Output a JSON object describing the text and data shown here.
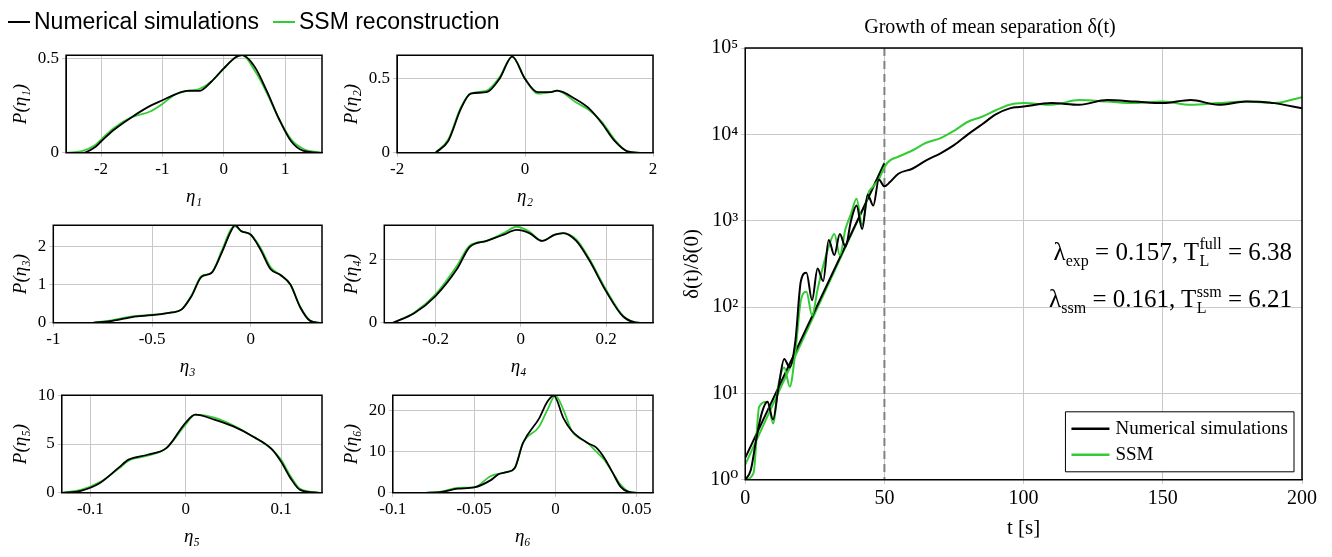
{
  "chart_data": [
    {
      "type": "line",
      "ylabel": "P(η₁)",
      "xlabel": "η₁",
      "xlim": [
        -2.57,
        1.6
      ],
      "xticks": [
        -2,
        -1,
        0,
        1
      ],
      "ylim": [
        0,
        0.52
      ],
      "yticks": [
        0,
        0.5
      ],
      "grid": true,
      "legend": "top",
      "series": [
        {
          "name": "Numerical simulations",
          "color": "#000000",
          "x": [
            -2.57,
            -2.3,
            -2.1,
            -2.0,
            -1.8,
            -1.5,
            -1.2,
            -1.0,
            -0.8,
            -0.6,
            -0.4,
            -0.2,
            0,
            0.2,
            0.3,
            0.5,
            0.7,
            0.9,
            1.1,
            1.3,
            1.6
          ],
          "values": [
            0,
            0,
            0.03,
            0.06,
            0.12,
            0.19,
            0.25,
            0.28,
            0.31,
            0.33,
            0.33,
            0.38,
            0.45,
            0.51,
            0.52,
            0.46,
            0.33,
            0.18,
            0.06,
            0.01,
            0
          ]
        },
        {
          "name": "SSM reconstruction",
          "color": "#33cc33",
          "x": [
            -2.57,
            -2.3,
            -2.1,
            -2.0,
            -1.8,
            -1.5,
            -1.2,
            -1.0,
            -0.8,
            -0.6,
            -0.4,
            -0.2,
            0,
            0.2,
            0.3,
            0.5,
            0.7,
            0.9,
            1.1,
            1.3,
            1.6
          ],
          "values": [
            0,
            0.01,
            0.04,
            0.07,
            0.13,
            0.19,
            0.22,
            0.26,
            0.31,
            0.33,
            0.34,
            0.38,
            0.45,
            0.51,
            0.52,
            0.44,
            0.32,
            0.18,
            0.07,
            0.02,
            0
          ]
        }
      ]
    },
    {
      "type": "line",
      "ylabel": "P(η₂)",
      "xlabel": "η₂",
      "xlim": [
        -2,
        2
      ],
      "xticks": [
        -2,
        0,
        2
      ],
      "ylim": [
        0,
        0.66
      ],
      "yticks": [
        0,
        0.5
      ],
      "grid": true,
      "series": [
        {
          "color": "#000000",
          "x": [
            -1.4,
            -1.2,
            -1.0,
            -0.85,
            -0.6,
            -0.4,
            -0.2,
            0,
            0.2,
            0.4,
            0.5,
            0.8,
            1.0,
            1.2,
            1.4,
            1.6,
            1.8
          ],
          "values": [
            0,
            0.08,
            0.3,
            0.4,
            0.41,
            0.5,
            0.65,
            0.5,
            0.41,
            0.41,
            0.42,
            0.36,
            0.3,
            0.2,
            0.08,
            0.01,
            0
          ]
        },
        {
          "color": "#33cc33",
          "x": [
            -1.4,
            -1.2,
            -1.0,
            -0.85,
            -0.6,
            -0.4,
            -0.2,
            0,
            0.2,
            0.4,
            0.5,
            0.8,
            1.0,
            1.2,
            1.4,
            1.6,
            1.8
          ],
          "values": [
            0,
            0.09,
            0.31,
            0.4,
            0.42,
            0.51,
            0.65,
            0.5,
            0.4,
            0.41,
            0.42,
            0.34,
            0.29,
            0.21,
            0.09,
            0.01,
            0
          ]
        }
      ]
    },
    {
      "type": "line",
      "ylabel": "P(η₃)",
      "xlabel": "η₃",
      "xlim": [
        -1,
        0.36
      ],
      "xticks": [
        -1,
        -0.5,
        0
      ],
      "ylim": [
        0,
        2.55
      ],
      "yticks": [
        0,
        1,
        2
      ],
      "grid": true,
      "series": [
        {
          "color": "#000000",
          "x": [
            -0.8,
            -0.7,
            -0.6,
            -0.5,
            -0.4,
            -0.35,
            -0.3,
            -0.25,
            -0.2,
            -0.15,
            -0.1,
            -0.08,
            -0.05,
            0,
            0.05,
            0.1,
            0.15,
            0.2,
            0.25,
            0.3,
            0.35
          ],
          "values": [
            0,
            0.05,
            0.15,
            0.2,
            0.27,
            0.35,
            0.7,
            1.2,
            1.3,
            1.8,
            2.4,
            2.55,
            2.4,
            2.3,
            1.9,
            1.4,
            1.25,
            1.0,
            0.4,
            0.05,
            0
          ]
        },
        {
          "color": "#33cc33",
          "x": [
            -0.8,
            -0.7,
            -0.6,
            -0.5,
            -0.4,
            -0.35,
            -0.3,
            -0.25,
            -0.2,
            -0.15,
            -0.1,
            -0.08,
            -0.05,
            0,
            0.05,
            0.1,
            0.15,
            0.2,
            0.25,
            0.3,
            0.35
          ],
          "values": [
            0,
            0.07,
            0.17,
            0.21,
            0.27,
            0.35,
            0.72,
            1.22,
            1.3,
            1.85,
            2.45,
            2.52,
            2.4,
            2.3,
            1.95,
            1.45,
            1.25,
            1.0,
            0.42,
            0.06,
            0
          ]
        }
      ]
    },
    {
      "type": "line",
      "ylabel": "P(η₄)",
      "xlabel": "η₄",
      "xlim": [
        -0.32,
        0.31
      ],
      "xticks": [
        -0.2,
        0,
        0.2
      ],
      "ylim": [
        0,
        3.1
      ],
      "yticks": [
        0,
        2
      ],
      "grid": true,
      "series": [
        {
          "color": "#000000",
          "x": [
            -0.3,
            -0.25,
            -0.2,
            -0.15,
            -0.12,
            -0.08,
            -0.04,
            -0.01,
            0.02,
            0.05,
            0.08,
            0.1,
            0.13,
            0.16,
            0.2,
            0.24,
            0.28,
            0.31
          ],
          "values": [
            0,
            0.3,
            0.85,
            1.7,
            2.4,
            2.6,
            2.8,
            2.95,
            2.85,
            2.6,
            2.8,
            2.85,
            2.6,
            2.0,
            1.0,
            0.2,
            0,
            0
          ]
        },
        {
          "color": "#33cc33",
          "x": [
            -0.3,
            -0.25,
            -0.2,
            -0.15,
            -0.12,
            -0.08,
            -0.04,
            -0.01,
            0.02,
            0.05,
            0.08,
            0.1,
            0.13,
            0.16,
            0.2,
            0.24,
            0.28,
            0.31
          ],
          "values": [
            0,
            0.32,
            0.9,
            1.8,
            2.45,
            2.6,
            2.85,
            3.05,
            2.9,
            2.6,
            2.8,
            2.85,
            2.65,
            2.05,
            1.05,
            0.22,
            0,
            0
          ]
        }
      ]
    },
    {
      "type": "line",
      "ylabel": "P(η₅)",
      "xlabel": "η₅",
      "xlim": [
        -0.13,
        0.143
      ],
      "xticks": [
        -0.1,
        0,
        0.1
      ],
      "ylim": [
        0,
        10
      ],
      "yticks": [
        0,
        5,
        10
      ],
      "grid": true,
      "series": [
        {
          "color": "#000000",
          "x": [
            -0.13,
            -0.11,
            -0.09,
            -0.07,
            -0.06,
            -0.04,
            -0.02,
            0,
            0.01,
            0.03,
            0.05,
            0.07,
            0.09,
            0.1,
            0.11,
            0.12,
            0.14
          ],
          "values": [
            0,
            0.2,
            1,
            2.6,
            3.4,
            3.9,
            4.6,
            7.2,
            8.0,
            7.5,
            6.8,
            5.8,
            4.5,
            3.2,
            1.5,
            0.3,
            0
          ]
        },
        {
          "color": "#33cc33",
          "x": [
            -0.13,
            -0.11,
            -0.09,
            -0.07,
            -0.06,
            -0.04,
            -0.02,
            0,
            0.01,
            0.03,
            0.05,
            0.07,
            0.09,
            0.1,
            0.11,
            0.12,
            0.14
          ],
          "values": [
            0,
            0.3,
            1.1,
            2.5,
            3.3,
            3.8,
            4.6,
            7.0,
            8.0,
            7.7,
            6.9,
            5.8,
            4.5,
            3.4,
            1.7,
            0.4,
            0
          ]
        }
      ]
    },
    {
      "type": "line",
      "ylabel": "P(η₆)",
      "xlabel": "η₆",
      "xlim": [
        -0.1,
        0.06
      ],
      "xticks": [
        -0.1,
        -0.05,
        0,
        0.05
      ],
      "ylim": [
        0,
        23.6
      ],
      "yticks": [
        0,
        10,
        20
      ],
      "grid": true,
      "series": [
        {
          "color": "#000000",
          "x": [
            -0.08,
            -0.07,
            -0.06,
            -0.05,
            -0.04,
            -0.035,
            -0.03,
            -0.025,
            -0.02,
            -0.01,
            -0.005,
            -0.001,
            0.005,
            0.01,
            0.02,
            0.025,
            0.03,
            0.035,
            0.04,
            0.045,
            0.05
          ],
          "values": [
            0,
            0.2,
            1,
            1.3,
            3,
            4.5,
            5,
            6,
            12,
            18,
            22,
            23.5,
            18,
            15,
            12,
            11,
            8.5,
            5,
            1.5,
            0.2,
            0
          ]
        },
        {
          "color": "#33cc33",
          "x": [
            -0.08,
            -0.07,
            -0.06,
            -0.05,
            -0.04,
            -0.035,
            -0.03,
            -0.025,
            -0.02,
            -0.01,
            -0.005,
            0,
            0.005,
            0.01,
            0.02,
            0.025,
            0.03,
            0.035,
            0.04,
            0.045,
            0.05
          ],
          "values": [
            0,
            0.3,
            1.2,
            1.3,
            4,
            4.6,
            5,
            6,
            12,
            16,
            20,
            23.5,
            20,
            15,
            12,
            10,
            8,
            5,
            2,
            0.3,
            0
          ]
        }
      ]
    },
    {
      "type": "line",
      "title": "Growth of mean separation δ(t)",
      "xlabel": "t [s]",
      "ylabel": "δ(t)/δ(0)",
      "log": true,
      "xlim": [
        0,
        200
      ],
      "xticks": [
        0,
        50,
        100,
        150,
        200
      ],
      "ylim": [
        1,
        100000
      ],
      "yticks": [
        {
          "value": 1,
          "label": "10⁰"
        },
        {
          "value": 10,
          "label": "10¹"
        },
        {
          "value": 100,
          "label": "10²"
        },
        {
          "value": 1000,
          "label": "10³"
        },
        {
          "value": 10000,
          "label": "10⁴"
        },
        {
          "value": 100000,
          "label": "10⁵"
        }
      ],
      "grid": true,
      "legend": "bottom right",
      "ref_lines": [
        {
          "axis": "x",
          "value": 50,
          "color": "#808080",
          "line_style": "dashed"
        }
      ],
      "annotations": [
        "λ$_{exp}$ = 0.157, T$_{L}$$^{full}$ = 6.38",
        "λ$_{ssm}$ = 0.161, T$_{L}$$^{ssm}$ = 6.21"
      ],
      "series": [
        {
          "name": "Numerical simulations",
          "color": "#000000",
          "x": [
            0,
            2,
            4,
            6,
            8,
            10,
            12,
            14,
            16,
            18,
            20,
            22,
            24,
            26,
            28,
            30,
            32,
            34,
            36,
            38,
            40,
            42,
            44,
            46,
            48,
            50,
            52,
            55,
            60,
            65,
            70,
            75,
            80,
            85,
            90,
            95,
            100,
            110,
            120,
            130,
            140,
            150,
            160,
            170,
            180,
            190,
            200
          ],
          "values": [
            1,
            1.3,
            3,
            6,
            8,
            5,
            12,
            25,
            20,
            40,
            200,
            250,
            120,
            280,
            200,
            600,
            400,
            700,
            500,
            1000,
            1500,
            800,
            2000,
            1500,
            3000,
            2500,
            2800,
            3500,
            4000,
            5000,
            6000,
            7500,
            10000,
            13000,
            17000,
            20000,
            21000,
            23000,
            22000,
            25000,
            24000,
            23000,
            25000,
            22000,
            24000,
            23000,
            20000
          ]
        },
        {
          "name": "SSM",
          "color": "#33cc33",
          "x": [
            0,
            3,
            5,
            8,
            10,
            12,
            14,
            16,
            18,
            20,
            22,
            24,
            26,
            28,
            30,
            32,
            34,
            36,
            38,
            40,
            42,
            44,
            46,
            48,
            50,
            52,
            55,
            60,
            65,
            70,
            75,
            80,
            85,
            90,
            95,
            100,
            110,
            120,
            130,
            140,
            150,
            160,
            170,
            180,
            190,
            200
          ],
          "values": [
            1,
            1.2,
            7,
            8,
            4.5,
            13,
            20,
            12,
            30,
            120,
            150,
            80,
            160,
            300,
            500,
            700,
            400,
            800,
            1200,
            1800,
            900,
            2000,
            2500,
            3000,
            4200,
            5000,
            5500,
            6500,
            8000,
            9000,
            11000,
            14000,
            16000,
            19000,
            22000,
            23000,
            22000,
            25000,
            24000,
            23000,
            24000,
            22000,
            23000,
            24000,
            23000,
            27000
          ]
        },
        {
          "type": "line",
          "color": "#000000",
          "x": [
            0,
            50
          ],
          "values": [
            1.8,
            4600
          ]
        },
        {
          "type": "line",
          "color": "#33cc33",
          "x": [
            0,
            50
          ],
          "values": [
            1.5,
            4700
          ]
        }
      ]
    }
  ]
}
